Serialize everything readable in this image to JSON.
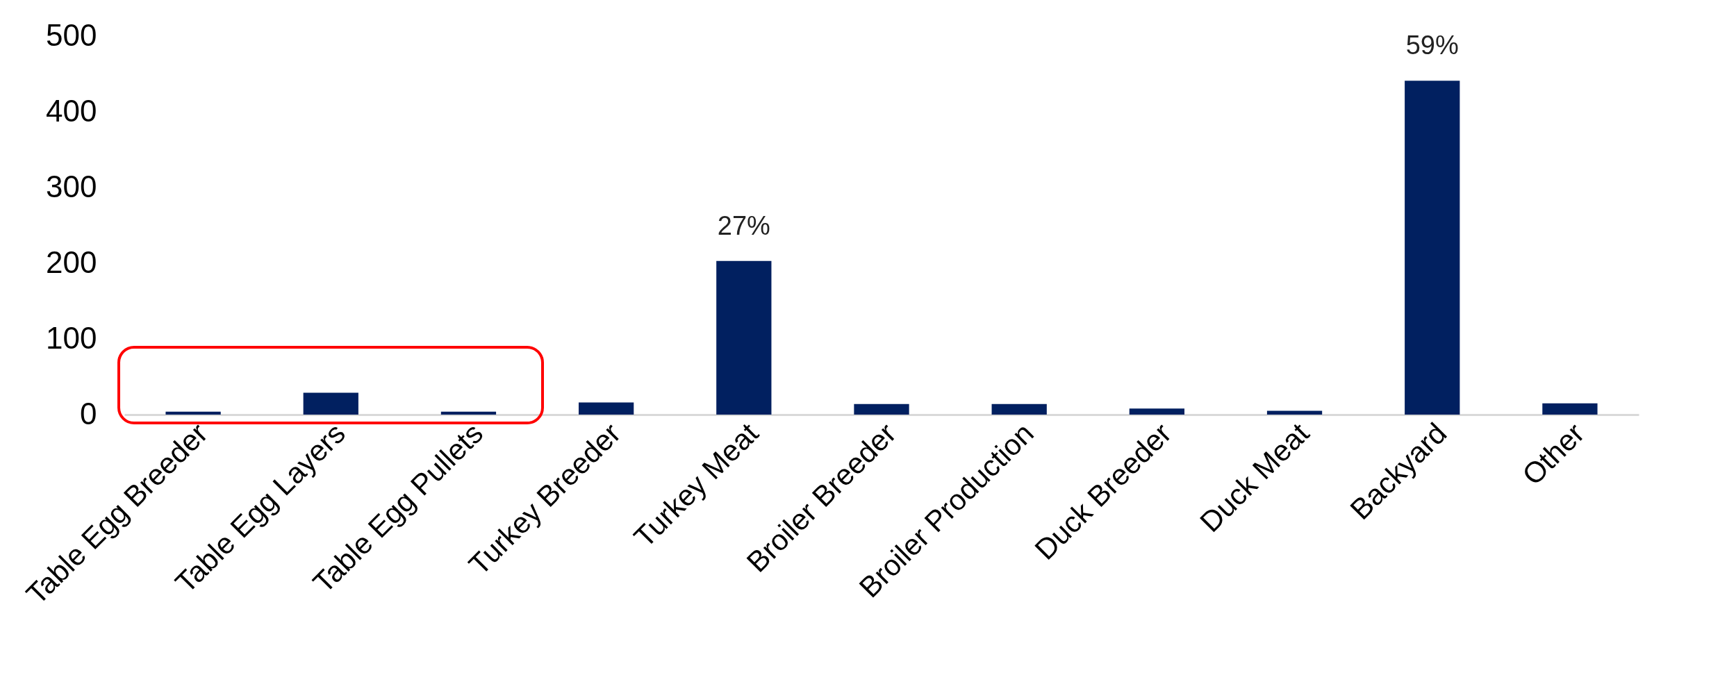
{
  "chart_data": {
    "type": "bar",
    "categories": [
      "Table Egg Breeder",
      "Table Egg Layers",
      "Table Egg Pullets",
      "Turkey Breeder",
      "Turkey Meat",
      "Broiler Breeder",
      "Broiler Production",
      "Duck Breeder",
      "Duck Meat",
      "Backyard",
      "Other"
    ],
    "values": [
      4,
      29,
      4,
      16,
      203,
      14,
      14,
      8,
      5,
      441,
      15
    ],
    "annotations": [
      {
        "text": "27%",
        "x": "Turkey Meat",
        "y": 203
      },
      {
        "text": "59%",
        "x": "Backyard",
        "y": 441
      }
    ],
    "color": "#012060",
    "ylim": [
      0,
      500
    ],
    "yticks": [
      0,
      100,
      200,
      300,
      400,
      500
    ],
    "grid": false
  }
}
